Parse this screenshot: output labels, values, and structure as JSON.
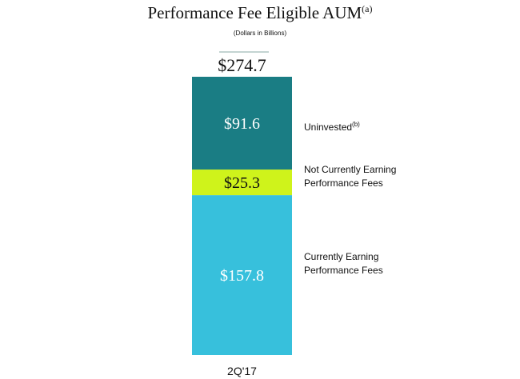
{
  "title": "Performance Fee Eligible AUM",
  "title_superscript": "(a)",
  "subtitle": "(Dollars in Billions)",
  "colors": {
    "uninvested": "#1a7d84",
    "not_currently_earning": "#cff31b",
    "currently_earning": "#37c0dc",
    "connector": "#8aa9a6"
  },
  "legend": {
    "uninvested": "Uninvested",
    "uninvested_superscript": "(b)",
    "not_currently_earning": "Not Currently Earning Performance Fees",
    "currently_earning": "Currently Earning Performance Fees"
  },
  "chart_data": {
    "type": "bar",
    "stacked": true,
    "title": "Performance Fee Eligible AUM",
    "subtitle": "(Dollars in Billions)",
    "categories": [
      "2Q'17"
    ],
    "total": 274.7,
    "total_label": "$274.7",
    "series": [
      {
        "name": "Currently Earning Performance Fees",
        "values": [
          157.8
        ],
        "label": "$157.8",
        "color": "#37c0dc",
        "label_color": "#ffffff"
      },
      {
        "name": "Not Currently Earning Performance Fees",
        "values": [
          25.3
        ],
        "label": "$25.3",
        "color": "#cff31b",
        "label_color": "#111111"
      },
      {
        "name": "Uninvested",
        "values": [
          91.6
        ],
        "label": "$91.6",
        "color": "#1a7d84",
        "label_color": "#ffffff"
      }
    ],
    "xlabel": "",
    "ylabel": "",
    "ylim": [
      0,
      274.7
    ]
  }
}
